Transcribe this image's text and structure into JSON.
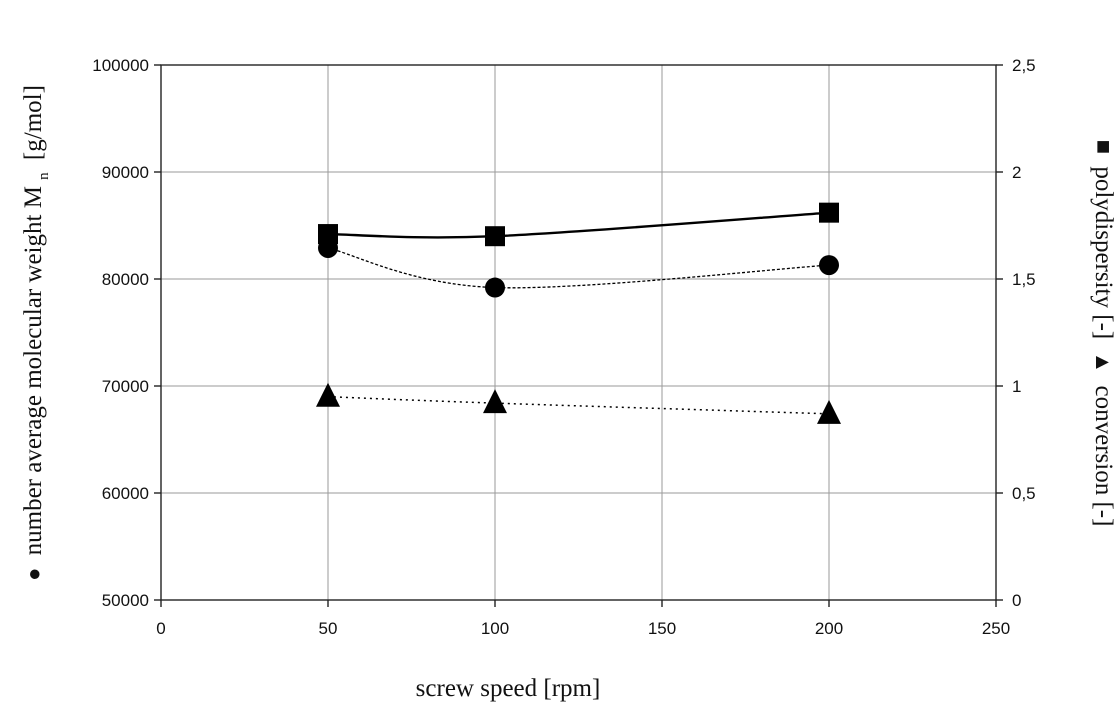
{
  "chart_data": {
    "type": "line",
    "x": [
      50,
      100,
      200
    ],
    "xlim": [
      0,
      250
    ],
    "ylim_left": [
      50000,
      100000
    ],
    "ylim_right": [
      0,
      2.5
    ],
    "x_ticks": [
      "0",
      "50",
      "100",
      "150",
      "200",
      "250"
    ],
    "y_left_ticks": [
      "50000",
      "60000",
      "70000",
      "80000",
      "90000",
      "100000"
    ],
    "y_right_ticks": [
      "0",
      "0,5",
      "1",
      "1,5",
      "2",
      "2,5"
    ],
    "xlabel": "screw speed [rpm]",
    "ylabel_left": "number average molecular weight M",
    "ylabel_left_sub": "n",
    "ylabel_left_unit": "[g/mol]",
    "ylabel_right": "polydispersity [-]",
    "ylabel_right_2": "conversion [-]",
    "grid": true,
    "series": [
      {
        "axis": "right",
        "marker": "square",
        "line": "solid",
        "color": "#000000",
        "values": [
          1.71,
          1.7,
          1.81
        ]
      },
      {
        "axis": "left",
        "marker": "circle",
        "line": "dashed",
        "color": "#000000",
        "values": [
          82900,
          79200,
          81300
        ]
      },
      {
        "axis": "right",
        "marker": "triangle",
        "line": "dotted",
        "color": "#000000",
        "values": [
          0.95,
          0.92,
          0.87
        ]
      }
    ]
  }
}
